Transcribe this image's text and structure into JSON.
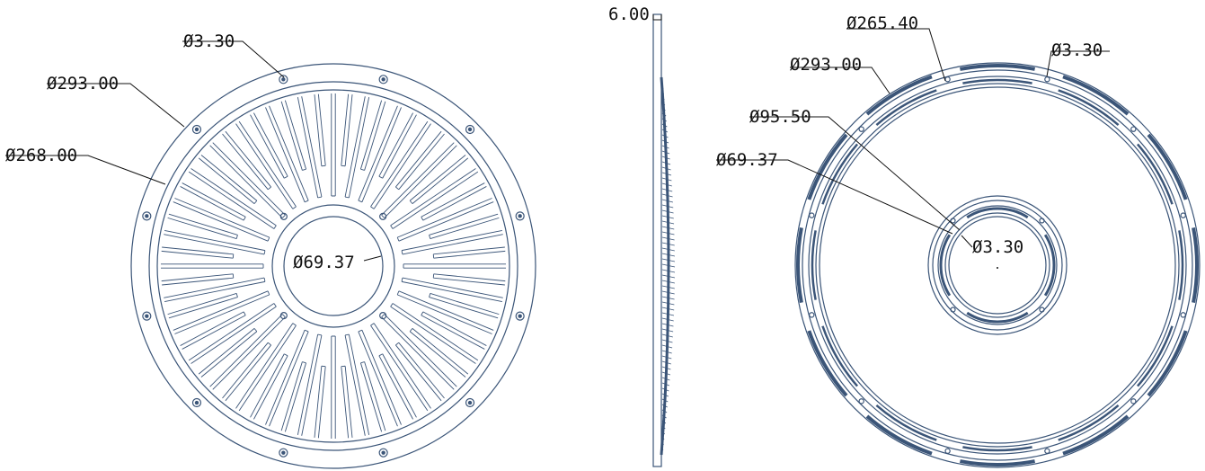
{
  "colors": {
    "line": "#3b5578",
    "leader": "#111111",
    "background": "#ffffff"
  },
  "front_view": {
    "hole_dia": "Ø3.30",
    "outer_dia": "Ø293.00",
    "fin_dia": "Ø268.00",
    "bore_dia": "Ø69.37"
  },
  "side_view": {
    "thickness": "6.00"
  },
  "back_view": {
    "groove_dia": "Ø265.40",
    "outer_dia": "Ø293.00",
    "hole_dia_outer": "Ø3.30",
    "inner_ring_dia": "Ø95.50",
    "bore_dia": "Ø69.37",
    "hole_dia_inner": "Ø3.30"
  }
}
